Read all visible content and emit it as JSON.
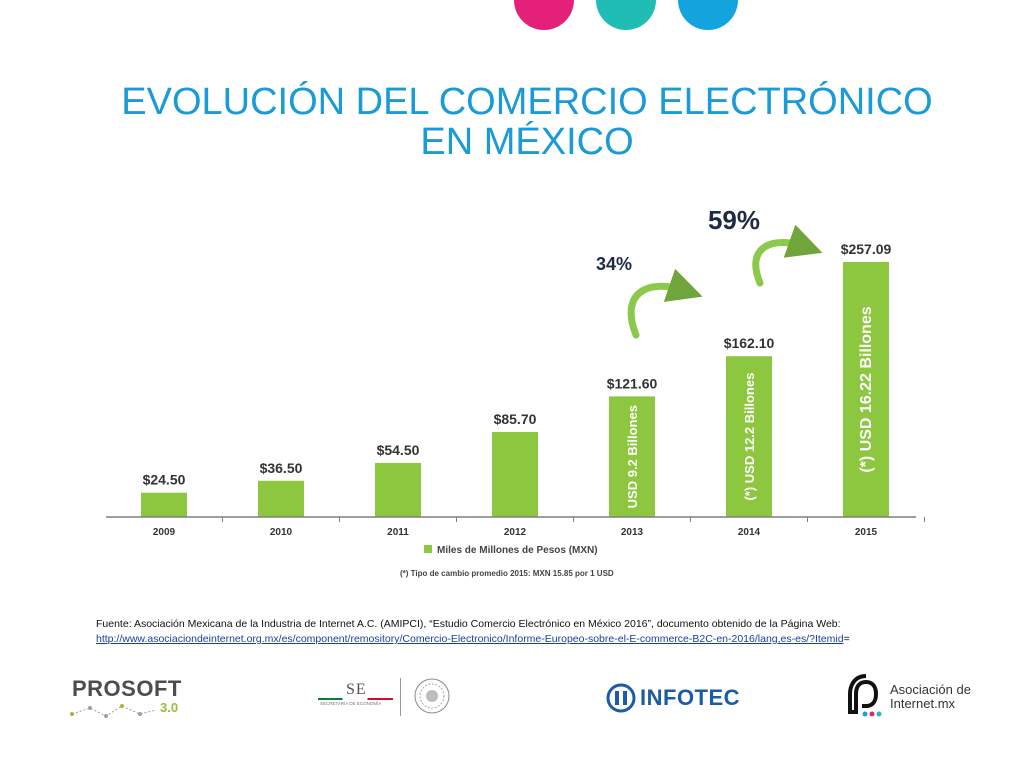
{
  "colors": {
    "circle_pink": "#e4207a",
    "circle_teal": "#1fbdb3",
    "circle_blue": "#13a4de",
    "title": "#1a9ad6",
    "bar": "#8dc63f",
    "arrow": "#8cc84b",
    "axis": "#7f7f7f"
  },
  "title": "EVOLUCIÓN DEL COMERCIO ELECTRÓNICO EN MÉXICO",
  "chart_data": {
    "type": "bar",
    "categories": [
      "2009",
      "2010",
      "2011",
      "2012",
      "2013",
      "2014",
      "2015"
    ],
    "values": [
      24.5,
      36.5,
      54.5,
      85.7,
      121.6,
      162.1,
      257.09
    ],
    "value_labels": [
      "$24.50",
      "$36.50",
      "$54.50",
      "$85.70",
      "$121.60",
      "$162.10",
      "$257.09"
    ],
    "bar_notes": [
      "",
      "",
      "",
      "",
      "USD 9.2 Billones",
      "(*) USD 12.2 Billones",
      "(*) USD 16.22 Billones"
    ],
    "growth_annotations": [
      "34%",
      "59%"
    ],
    "legend": "Miles de Millones de Pesos (MXN)",
    "footnote": "(*) Tipo de cambio promedio 2015: MXN 15.85 por 1 USD",
    "ylim": [
      0,
      260
    ],
    "grid": false
  },
  "source": {
    "text": "Fuente: Asociación Mexicana de la Industria de Internet A.C. (AMIPCI), “Estudio Comercio Electrónico en México 2016”, documento obtenido de la Página Web:",
    "link": "http://www.asociaciondeinternet.org.mx/es/component/remository/Comercio-Electronico/Informe-Europeo-sobre-el-E-commerce-B2C-en-2016/lang,es-es/?Itemid",
    "link_suffix": "="
  },
  "logos": {
    "prosoft": "PROSOFT",
    "prosoft_version": "3.0",
    "se": "SE",
    "se_sub": "SECRETARÍA DE ECONOMÍA",
    "infotec": "INFOTEC",
    "aimx_line1": "Asociación de",
    "aimx_line2": "Internet.mx"
  }
}
